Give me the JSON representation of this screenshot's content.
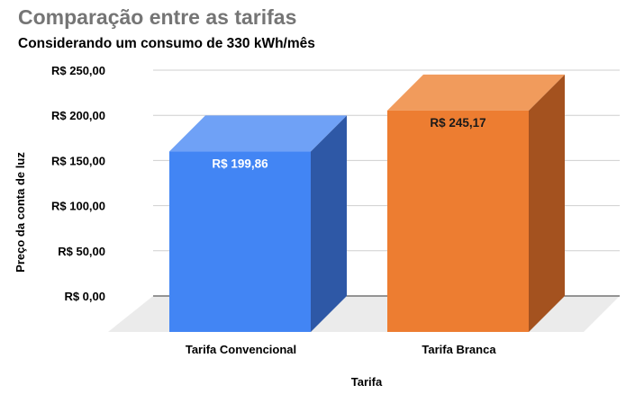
{
  "title": "Comparação entre as tarifas",
  "subtitle": "Considerando um consumo de 330 kWh/mês",
  "chart_data": {
    "type": "bar",
    "style": "3d",
    "categories": [
      "Tarifa Convencional",
      "Tarifa Branca"
    ],
    "values": [
      199.86,
      245.17
    ],
    "data_labels": [
      "R$ 199,86",
      "R$ 245,17"
    ],
    "colors": [
      "#4285f4",
      "#ed7d31"
    ],
    "top_colors": [
      "#6fa1f6",
      "#f19b5c"
    ],
    "side_colors": [
      "#2e58a6",
      "#a4521f"
    ],
    "label_colors": [
      "#ffffff",
      "#1a1a1a"
    ],
    "xlabel": "Tarifa",
    "ylabel": "Preço da conta de luz",
    "ylim": [
      0,
      250
    ],
    "yticks": [
      0,
      50,
      100,
      150,
      200,
      250
    ],
    "ytick_labels": [
      "R$ 0,00",
      "R$ 50,00",
      "R$ 100,00",
      "R$ 150,00",
      "R$ 200,00",
      "R$ 250,00"
    ],
    "grid": true,
    "legend": "none"
  }
}
